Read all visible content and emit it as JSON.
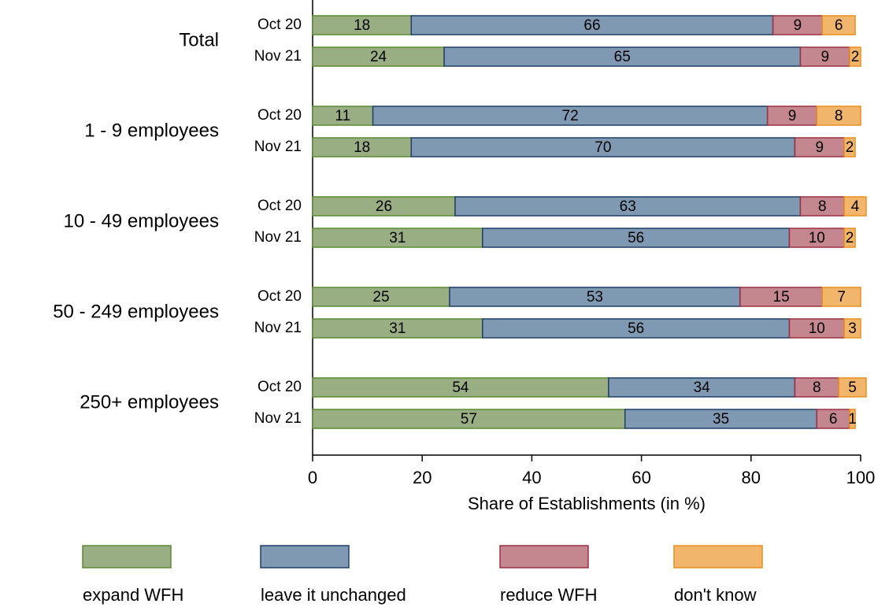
{
  "chart_data": {
    "type": "bar",
    "orientation": "horizontal",
    "stacked": true,
    "groups": [
      "Total",
      "1 - 9 employees",
      "10 - 49 employees",
      "50 - 249 employees",
      "250+ employees"
    ],
    "categories": [
      "Oct 20",
      "Nov 21",
      "Oct 20",
      "Nov 21",
      "Oct 20",
      "Nov 21",
      "Oct 20",
      "Nov 21",
      "Oct 20",
      "Nov 21"
    ],
    "series": [
      {
        "name": "expand WFH",
        "color": "#9aae84",
        "stroke": "#5b8a34",
        "values": [
          18,
          24,
          11,
          18,
          26,
          31,
          25,
          31,
          54,
          57
        ]
      },
      {
        "name": "leave it unchanged",
        "color": "#8099b3",
        "stroke": "#1f3f66",
        "values": [
          66,
          65,
          72,
          70,
          63,
          56,
          53,
          56,
          34,
          35
        ]
      },
      {
        "name": "reduce WFH",
        "color": "#c4868f",
        "stroke": "#9b3040",
        "values": [
          9,
          9,
          9,
          9,
          8,
          10,
          15,
          10,
          8,
          6
        ]
      },
      {
        "name": "don't know",
        "color": "#f1b56b",
        "stroke": "#e8901f",
        "values": [
          6,
          2,
          8,
          2,
          4,
          2,
          7,
          3,
          5,
          1
        ]
      }
    ],
    "xlabel": "Share of Establishments (in %)",
    "xlim": [
      0,
      100
    ],
    "xticks": [
      0,
      20,
      40,
      60,
      80,
      100
    ],
    "legend": "bottom"
  }
}
